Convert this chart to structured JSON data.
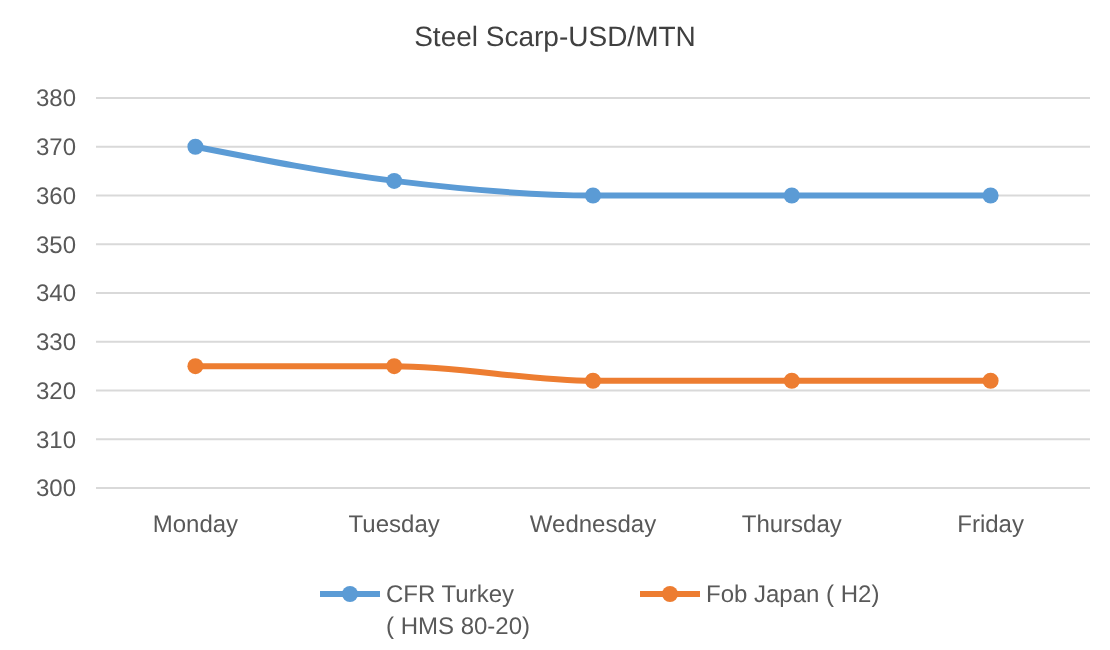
{
  "chart_data": {
    "type": "line",
    "title": "Steel Scarp-USD/MTN",
    "categories": [
      "Monday",
      "Tuesday",
      "Wednesday",
      "Thursday",
      "Friday"
    ],
    "series": [
      {
        "name": "CFR Turkey\n( HMS 80-20)",
        "color": "#5b9bd5",
        "values": [
          370,
          363,
          360,
          360,
          360
        ]
      },
      {
        "name": "Fob Japan ( H2)",
        "color": "#ed7d31",
        "values": [
          325,
          325,
          322,
          322,
          322
        ]
      }
    ],
    "ylim": [
      300,
      380
    ],
    "yticks": [
      300,
      310,
      320,
      330,
      340,
      350,
      360,
      370,
      380
    ],
    "grid": "y",
    "legend": "bottom",
    "marker": "circle",
    "line_style": "solid"
  }
}
